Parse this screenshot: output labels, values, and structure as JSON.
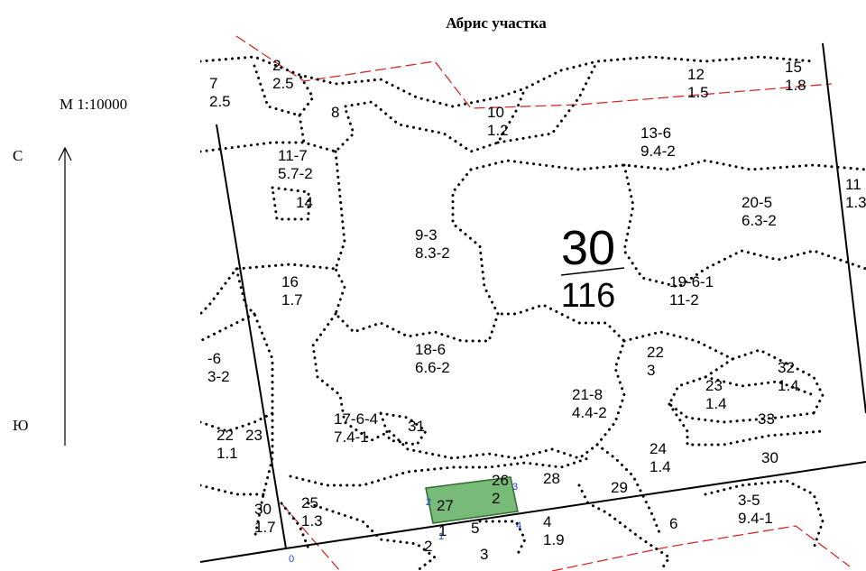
{
  "title": "Абрис участка",
  "scale": "М 1:10000",
  "north": "С",
  "south": "Ю",
  "quarter": {
    "number": "30",
    "area": "116"
  },
  "plots": [
    {
      "num": "7",
      "tax": "2.5"
    },
    {
      "num": "2",
      "tax": "2.5"
    },
    {
      "num": "8",
      "tax": ""
    },
    {
      "num": "10",
      "tax": "1.2"
    },
    {
      "num": "12",
      "tax": "1.5"
    },
    {
      "num": "15",
      "tax": "1.8"
    },
    {
      "num": "13-6",
      "tax": "9.4-2"
    },
    {
      "num": "11-7",
      "tax": "5.7-2"
    },
    {
      "num": "14",
      "tax": ""
    },
    {
      "num": "11",
      "tax": "1.3"
    },
    {
      "num": "20-5",
      "tax": "6.3-2"
    },
    {
      "num": "9-3",
      "tax": "8.3-2"
    },
    {
      "num": "16",
      "tax": "1.7"
    },
    {
      "num": "19-6-1",
      "tax": "11-2"
    },
    {
      "num": "-6",
      "tax": "3-2"
    },
    {
      "num": "18-6",
      "tax": "6.6-2"
    },
    {
      "num": "22",
      "tax": "3"
    },
    {
      "num": "32",
      "tax": "1.4"
    },
    {
      "num": "23",
      "tax": "1.4"
    },
    {
      "num": "21-8",
      "tax": "4.4-2"
    },
    {
      "num": "17-6-4",
      "tax": "7.4-1"
    },
    {
      "num": "31",
      "tax": ""
    },
    {
      "num": "33",
      "tax": ""
    },
    {
      "num": "22",
      "tax": "1.1"
    },
    {
      "num": "23",
      "tax": ""
    },
    {
      "num": "24",
      "tax": "1.4"
    },
    {
      "num": "30",
      "tax": ""
    },
    {
      "num": "26",
      "tax": "2"
    },
    {
      "num": "27",
      "tax": ""
    },
    {
      "num": "28",
      "tax": ""
    },
    {
      "num": "29",
      "tax": ""
    },
    {
      "num": "25",
      "tax": "1.3"
    },
    {
      "num": "30",
      "tax": "1.7"
    },
    {
      "num": "4",
      "tax": "1.9"
    },
    {
      "num": "5",
      "tax": ""
    },
    {
      "num": "6",
      "tax": ""
    },
    {
      "num": "3-5",
      "tax": "9.4-1"
    },
    {
      "num": "2",
      "tax": ""
    },
    {
      "num": "3",
      "tax": ""
    },
    {
      "num": "1",
      "tax": ""
    }
  ],
  "vertices": [
    "0",
    "1",
    "2",
    "3",
    "4"
  ],
  "colors": {
    "boundary": "#000000",
    "road": "#d62a2a",
    "selected_fill": "#78bb78",
    "selected_stroke": "#2f6b2f",
    "vertex_label": "#1a3fe0"
  }
}
